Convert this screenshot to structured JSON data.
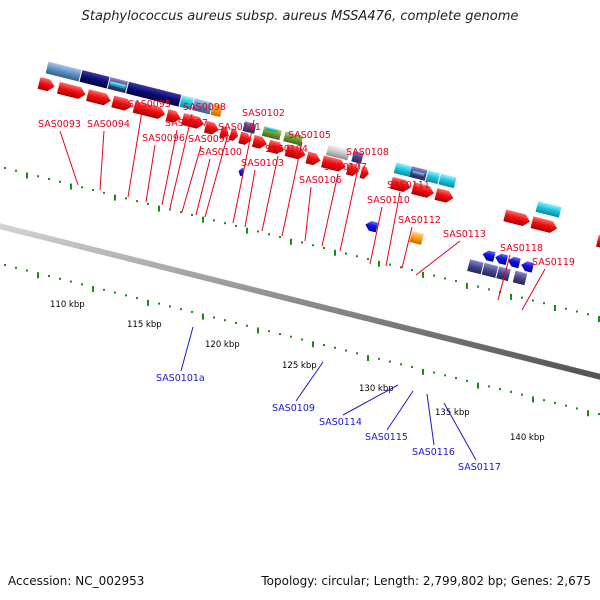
{
  "title": "Staphylococcus aureus subsp. aureus MSSA476, complete genome",
  "footer": {
    "accession": "Accession: NC_002953",
    "topology": "Topology: circular; Length: 2,799,802 bp; Genes: 2,675"
  },
  "colors": {
    "cds_red": "#ee1111",
    "cds_blue": "#1111dd",
    "backbone": "#8c8c8c",
    "tick_green": "#1a8a1a",
    "label_red": "#e8001c",
    "label_blue": "#1a1acc",
    "cog_navy": "#0b0b6e",
    "cog_steel": "#5e8ec2",
    "cog_cyan": "#18c4dd",
    "cog_orange": "#ff9a10",
    "cog_olive": "#6e9a32",
    "cog_gray": "#c8c8c8",
    "cog_slate": "#44448a"
  },
  "scale": [
    "110 kbp",
    "115 kbp",
    "120 kbp",
    "125 kbp",
    "130 kbp",
    "135 kbp",
    "140 kbp"
  ],
  "forward_genes": [
    "SAS0093",
    "SAS0094",
    "SAS0095",
    "SAS0096",
    "SAS0097",
    "SAS0098",
    "SAS0099",
    "SAS0100",
    "SAS0101",
    "SAS0102",
    "SAS0103",
    "SAS0104",
    "SAS0105",
    "SAS0106",
    "SAS0107",
    "SAS0108",
    "SAS0110",
    "SAS0111",
    "SAS0112",
    "SAS0113",
    "SAS0118",
    "SAS0119"
  ],
  "reverse_genes": [
    "SAS0101a",
    "SAS0109",
    "SAS0114",
    "SAS0115",
    "SAS0116",
    "SAS0117"
  ]
}
